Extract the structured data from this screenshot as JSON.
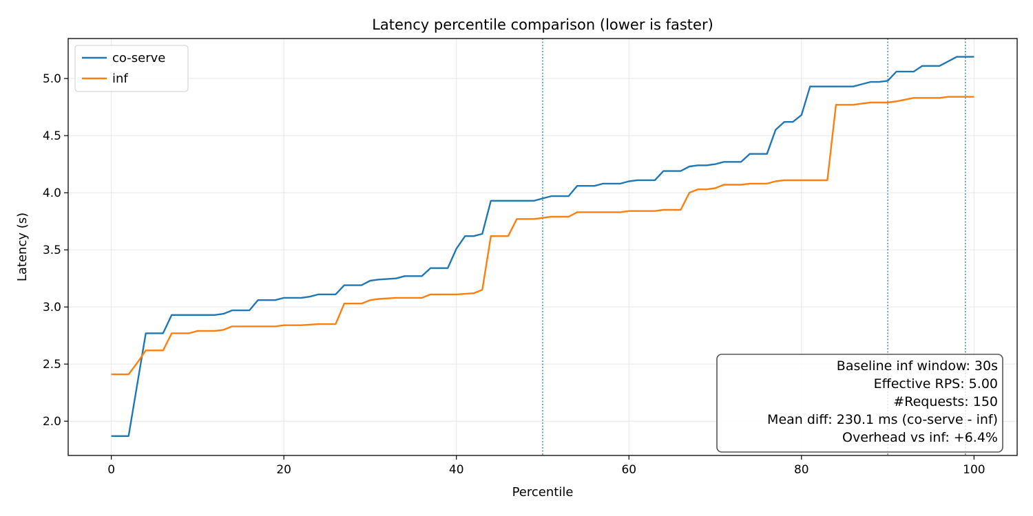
{
  "chart_data": {
    "type": "line",
    "title": "Latency percentile comparison (lower is faster)",
    "xlabel": "Percentile",
    "ylabel": "Latency (s)",
    "xlim": [
      -5,
      105
    ],
    "ylim": [
      1.7,
      5.35
    ],
    "xticks": [
      0,
      20,
      40,
      60,
      80,
      100
    ],
    "yticks": [
      2.0,
      2.5,
      3.0,
      3.5,
      4.0,
      4.5,
      5.0
    ],
    "ytick_labels": [
      "2.0",
      "2.5",
      "3.0",
      "3.5",
      "4.0",
      "4.5",
      "5.0"
    ],
    "grid": true,
    "legend_position": "top-left",
    "percentile_markers": [
      50,
      90,
      99
    ],
    "series": [
      {
        "name": "co-serve",
        "color": "#1f77b4",
        "x": [
          0,
          2,
          4,
          6,
          7,
          9,
          12,
          13,
          14,
          16,
          17,
          19,
          20,
          21,
          22,
          23,
          24,
          26,
          27,
          29,
          30,
          31,
          33,
          34,
          36,
          37,
          39,
          40,
          41,
          42,
          43,
          44,
          47,
          49,
          50,
          51,
          53,
          54,
          56,
          57,
          59,
          60,
          61,
          63,
          64,
          66,
          67,
          68,
          69,
          70,
          71,
          73,
          74,
          76,
          77,
          78,
          79,
          80,
          81,
          83,
          86,
          87,
          88,
          89,
          90,
          91,
          93,
          94,
          96,
          97,
          98,
          100
        ],
        "y": [
          1.87,
          1.87,
          2.77,
          2.77,
          2.93,
          2.93,
          2.93,
          2.94,
          2.97,
          2.97,
          3.06,
          3.06,
          3.08,
          3.08,
          3.08,
          3.09,
          3.11,
          3.11,
          3.19,
          3.19,
          3.23,
          3.24,
          3.25,
          3.27,
          3.27,
          3.34,
          3.34,
          3.51,
          3.62,
          3.62,
          3.64,
          3.93,
          3.93,
          3.93,
          3.95,
          3.97,
          3.97,
          4.06,
          4.06,
          4.08,
          4.08,
          4.1,
          4.11,
          4.11,
          4.19,
          4.19,
          4.23,
          4.24,
          4.24,
          4.25,
          4.27,
          4.27,
          4.34,
          4.34,
          4.55,
          4.62,
          4.62,
          4.68,
          4.93,
          4.93,
          4.93,
          4.95,
          4.97,
          4.97,
          4.98,
          5.06,
          5.06,
          5.11,
          5.11,
          5.15,
          5.19,
          5.19
        ]
      },
      {
        "name": "inf",
        "color": "#ff7f0e",
        "x": [
          0,
          2,
          3,
          4,
          6,
          7,
          9,
          10,
          12,
          13,
          14,
          16,
          17,
          19,
          20,
          22,
          24,
          26,
          27,
          29,
          30,
          31,
          33,
          34,
          36,
          37,
          39,
          40,
          42,
          43,
          44,
          46,
          47,
          49,
          50,
          51,
          53,
          54,
          56,
          57,
          59,
          60,
          61,
          63,
          64,
          66,
          67,
          68,
          69,
          70,
          71,
          73,
          74,
          76,
          77,
          78,
          80,
          81,
          83,
          84,
          86,
          87,
          88,
          89,
          90,
          91,
          93,
          94,
          96,
          97,
          98,
          100
        ],
        "y": [
          2.41,
          2.41,
          2.51,
          2.62,
          2.62,
          2.77,
          2.77,
          2.79,
          2.79,
          2.8,
          2.83,
          2.83,
          2.83,
          2.83,
          2.84,
          2.84,
          2.85,
          2.85,
          3.03,
          3.03,
          3.06,
          3.07,
          3.08,
          3.08,
          3.08,
          3.11,
          3.11,
          3.11,
          3.12,
          3.15,
          3.62,
          3.62,
          3.77,
          3.77,
          3.78,
          3.79,
          3.79,
          3.83,
          3.83,
          3.83,
          3.83,
          3.84,
          3.84,
          3.84,
          3.85,
          3.85,
          4.0,
          4.03,
          4.03,
          4.04,
          4.07,
          4.07,
          4.08,
          4.08,
          4.1,
          4.11,
          4.11,
          4.11,
          4.11,
          4.77,
          4.77,
          4.78,
          4.79,
          4.79,
          4.79,
          4.8,
          4.83,
          4.83,
          4.83,
          4.84,
          4.84,
          4.84
        ]
      }
    ],
    "info_box": {
      "position": "bottom-right",
      "lines": [
        "Baseline inf window: 30s",
        "Effective RPS: 5.00",
        "#Requests: 150",
        "Mean diff: 230.1 ms (co-serve - inf)",
        "Overhead vs inf: +6.4%"
      ]
    }
  }
}
